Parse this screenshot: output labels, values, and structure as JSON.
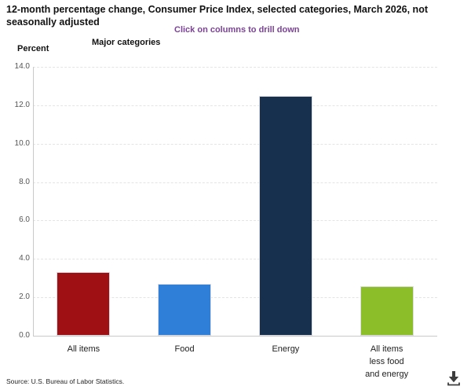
{
  "header": {
    "title": "12-month percentage change, Consumer Price Index, selected categories, March 2026, not seasonally adjusted",
    "subtitle": "Click on columns to drill down",
    "y_axis_label": "Percent",
    "x_axis_label": "Major categories"
  },
  "chart_data": {
    "type": "bar",
    "categories": [
      "All items",
      "Food",
      "Energy",
      "All items less food and energy"
    ],
    "category_display": [
      "All items",
      "Food",
      "Energy",
      "All items\nless food\nand energy"
    ],
    "values": [
      3.3,
      2.7,
      12.5,
      2.6
    ],
    "bar_colors": [
      "#9e1013",
      "#2f7ed8",
      "#16304d",
      "#8bbe29"
    ],
    "title": "12-month percentage change, Consumer Price Index, selected categories, March 2026, not seasonally adjusted",
    "subtitle": "Click on columns to drill down",
    "xlabel": "Major categories",
    "ylabel": "Percent",
    "ylim": [
      0,
      14
    ],
    "ytick_step": 2,
    "ytick_labels": [
      "0.0",
      "2.0",
      "4.0",
      "6.0",
      "8.0",
      "10.0",
      "12.0",
      "14.0"
    ],
    "grid": "horizontal-dashed",
    "legend": "none"
  },
  "footer": {
    "source": "Source: U.S. Bureau of Labor Statistics."
  },
  "colors": {
    "subtitle_text": "#7d4199",
    "axis_line": "#c9c9c9",
    "gridline": "#e4e4e4",
    "tick_label": "#555555",
    "category_label": "#222222",
    "download_icon": "#3d3d3d"
  }
}
